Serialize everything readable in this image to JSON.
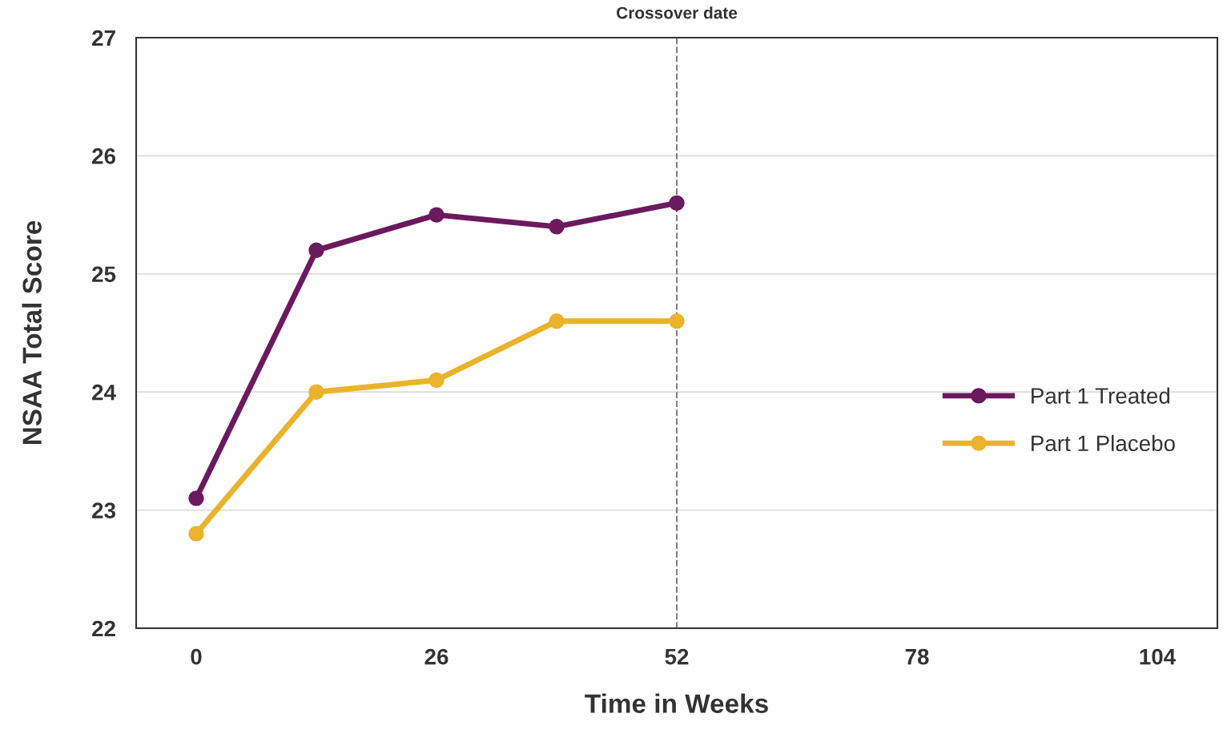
{
  "chart_data": {
    "type": "line",
    "xlabel": "Time in Weeks",
    "ylabel": "NSAA Total Score",
    "x": [
      0,
      13,
      26,
      39,
      52
    ],
    "series": [
      {
        "name": "Part 1 Treated",
        "color": "#6b1a5f",
        "values": [
          23.1,
          25.2,
          25.5,
          25.4,
          25.6
        ]
      },
      {
        "name": "Part 1 Placebo",
        "color": "#ebb32c",
        "values": [
          22.8,
          24.0,
          24.1,
          24.6,
          24.6
        ]
      }
    ],
    "xlim": [
      -6.5,
      110.5
    ],
    "xticks": [
      0,
      26,
      52,
      78,
      104
    ],
    "ylim": [
      22,
      27
    ],
    "yticks": [
      22,
      23,
      24,
      25,
      26,
      27
    ],
    "ref_lines": [
      {
        "axis": "x",
        "value": 52,
        "label": "Crossover date",
        "color": "#808080",
        "line_style": "dashed"
      }
    ],
    "grid": "y",
    "legend": "right",
    "marker": "circle",
    "line_style": "solid"
  }
}
